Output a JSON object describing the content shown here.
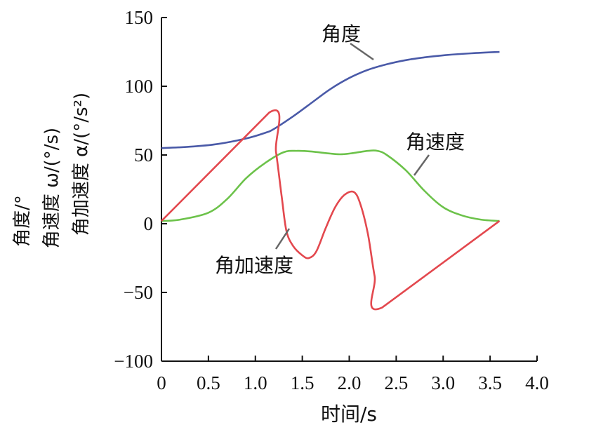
{
  "chart_data": {
    "type": "line",
    "xlabel": "时间/s",
    "ylabel_lines": [
      "角度/°",
      "角速度 ω/(°/s)",
      "角加速度 α/(°/s²)"
    ],
    "xlim": [
      0,
      4.0
    ],
    "ylim": [
      -100,
      150
    ],
    "xticks": [
      0,
      0.5,
      1.0,
      1.5,
      2.0,
      2.5,
      3.0,
      3.5,
      4.0
    ],
    "xtick_labels": [
      "0",
      "0.5",
      "1.0",
      "1.5",
      "2.0",
      "2.5",
      "3.0",
      "3.5",
      "4.0"
    ],
    "yticks": [
      -100,
      -50,
      0,
      50,
      100,
      150
    ],
    "ytick_labels": [
      "−100",
      "−50",
      "0",
      "50",
      "100",
      "150"
    ],
    "grid": false,
    "series": [
      {
        "name": "角度",
        "color": "#4a5aa8",
        "x": [
          0,
          0.3,
          0.6,
          0.9,
          1.1,
          1.2,
          1.4,
          1.6,
          1.8,
          2.0,
          2.2,
          2.4,
          2.6,
          2.8,
          3.0,
          3.3,
          3.6
        ],
        "y": [
          55,
          56,
          58,
          62,
          66,
          69,
          78,
          88,
          98,
          106,
          112,
          116,
          119,
          121,
          122.5,
          124,
          125
        ]
      },
      {
        "name": "角速度",
        "color": "#6cc24a",
        "x": [
          0,
          0.2,
          0.5,
          0.7,
          0.9,
          1.1,
          1.3,
          1.45,
          1.6,
          1.8,
          1.9,
          2.0,
          2.2,
          2.3,
          2.4,
          2.6,
          2.8,
          3.0,
          3.2,
          3.4,
          3.6
        ],
        "y": [
          2,
          3,
          8,
          18,
          33,
          44,
          52,
          53,
          52.5,
          51,
          50.5,
          51,
          53,
          53,
          50,
          39,
          24,
          12,
          6,
          3,
          2
        ]
      },
      {
        "name": "角加速度",
        "color": "#e3484e",
        "x": [
          0,
          1.15,
          1.22,
          1.28,
          1.33,
          1.4,
          1.5,
          1.57,
          1.65,
          1.75,
          1.85,
          1.95,
          2.05,
          2.12,
          2.2,
          2.27,
          2.35,
          3.6
        ],
        "y": [
          2,
          81,
          52,
          20,
          -5,
          -16,
          -23,
          -25,
          -20,
          -3,
          12,
          21,
          23,
          14,
          -8,
          -38,
          -61,
          2
        ]
      }
    ],
    "annotations": [
      "角度",
      "角速度",
      "角加速度"
    ]
  }
}
